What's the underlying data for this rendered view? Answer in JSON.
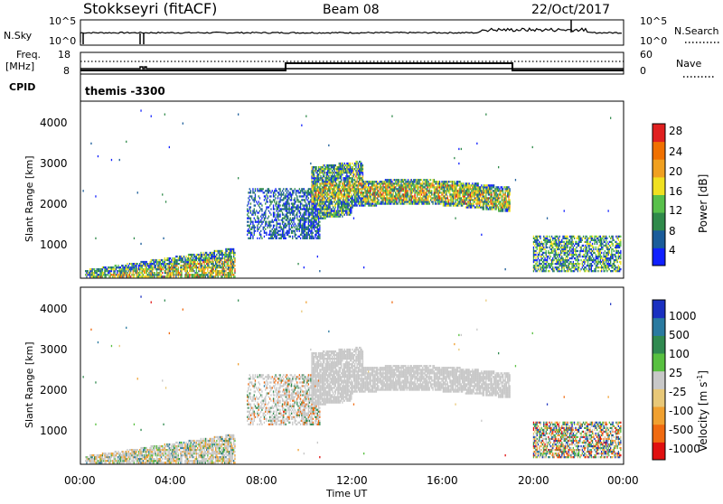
{
  "header": {
    "station": "Stokkseyri (fitACF)",
    "beam": "Beam 08",
    "date": "22/Oct/2017"
  },
  "top_panels": {
    "nsky_label": "N.Sky",
    "nsky_ticks": [
      "10^5",
      "10^0"
    ],
    "nsearch_label": "N.Search",
    "nsearch_ticks": [
      "10^5",
      "10^0"
    ],
    "freq_label": "Freq.",
    "freq_unit": "[MHz]",
    "freq_ticks": [
      "18",
      "8"
    ],
    "nave_label": "Nave",
    "nave_ticks": [
      "60",
      "0"
    ],
    "cpid_label": "CPID",
    "cpid_value": "themis -3300"
  },
  "colors": {
    "power": [
      "#1020ff",
      "#1a5c9a",
      "#2f8a4a",
      "#58c04a",
      "#f0e020",
      "#f0a020",
      "#f07000",
      "#e02020"
    ],
    "velocity": [
      "#e01010",
      "#f06a10",
      "#f0a030",
      "#e8c878",
      "#c8c8c8",
      "#58c040",
      "#308a50",
      "#2a7aa0",
      "#1a30c0"
    ],
    "missing": "#c8c8c8"
  },
  "chart_data": [
    {
      "type": "heatmap",
      "panel": "power",
      "ylabel": "Slant Range [km]",
      "colorbar_label": "Power [dB]",
      "colorbar_ticks": [
        "28",
        "24",
        "20",
        "16",
        "12",
        "8",
        "4"
      ],
      "y_ticks": [
        "4000",
        "3000",
        "2000",
        "1000"
      ],
      "x_ticks": [
        "00:00",
        "04:00",
        "08:00",
        "12:00",
        "16:00",
        "20:00",
        "00:00"
      ],
      "x_range_hours": [
        0,
        24
      ],
      "y_range_km": [
        180,
        4550
      ],
      "echo_regions": [
        {
          "t0": 0.2,
          "t1": 6.8,
          "r0": 250,
          "r1": 900,
          "level": "high"
        },
        {
          "t0": 7.5,
          "t1": 11.0,
          "r0": 1100,
          "r1": 2400,
          "level": "low"
        },
        {
          "t0": 10.0,
          "t1": 19.0,
          "r0": 1300,
          "r1": 3000,
          "level": "high"
        },
        {
          "t0": 20.0,
          "t1": 23.9,
          "r0": 300,
          "r1": 1200,
          "level": "mid"
        }
      ]
    },
    {
      "type": "heatmap",
      "panel": "velocity",
      "ylabel": "Slant Range [km]",
      "colorbar_label": "Velocity [m s",
      "colorbar_unit_sup": "-1",
      "colorbar_ticks": [
        "1000",
        "500",
        "100",
        "25",
        "-25",
        "-100",
        "-500",
        "-1000"
      ],
      "y_ticks": [
        "4000",
        "3000",
        "2000",
        "1000"
      ],
      "x_ticks": [
        "00:00",
        "04:00",
        "08:00",
        "12:00",
        "16:00",
        "20:00",
        "00:00"
      ],
      "xlabel": "Time UT",
      "x_range_hours": [
        0,
        24
      ],
      "y_range_km": [
        180,
        4550
      ]
    }
  ]
}
